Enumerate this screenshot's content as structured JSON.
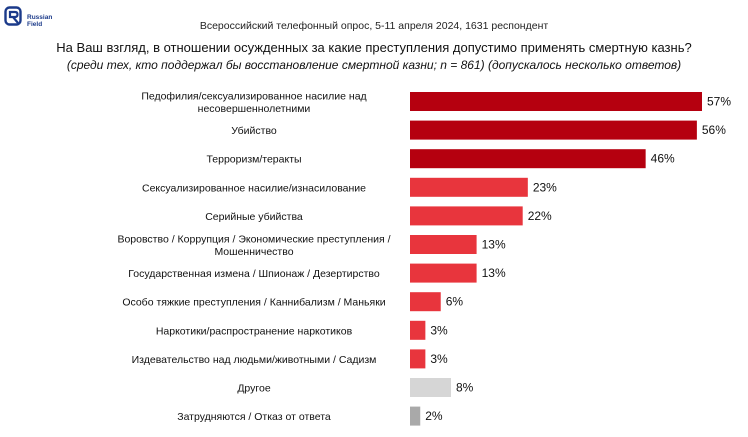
{
  "header": {
    "logo_text_1": "Russian",
    "logo_text_2": "Field",
    "survey_line": "Всероссийский телефонный опрос, 5-11 апреля 2024, 1631 респондент",
    "question": "На Ваш взгляд, в отношении осужденных за какие преступления допустимо применять смертную казнь?",
    "subtitle": "(среди тех, кто поддержал бы восстановление смертной казни; n = 861) (допускалось несколько ответов)"
  },
  "colors": {
    "dark_red": "#b5000f",
    "red": "#e8353d",
    "light_gray": "#d6d6d6",
    "mid_gray": "#a9a9a9",
    "logo_blue": "#1b3a8a"
  },
  "chart_data": {
    "type": "bar",
    "orientation": "horizontal",
    "unit": "%",
    "categories": [
      [
        "Педофилия/сексуализированное насилие над",
        "несовершеннолетними"
      ],
      [
        "Убийство"
      ],
      [
        "Терроризм/теракты"
      ],
      [
        "Сексуализированное насилие/изнасилование"
      ],
      [
        "Серийные убийства"
      ],
      [
        "Воровство / Коррупция / Экономические преступления /",
        "Мошенничество"
      ],
      [
        "Государственная измена / Шпионаж / Дезертирство"
      ],
      [
        "Особо тяжкие преступления / Каннибализм / Маньяки"
      ],
      [
        "Наркотики/распространение наркотиков"
      ],
      [
        "Издевательство над людьми/животными / Садизм"
      ],
      [
        "Другое"
      ],
      [
        "Затрудняются / Отказ от ответа"
      ]
    ],
    "values": [
      57,
      56,
      46,
      23,
      22,
      13,
      13,
      6,
      3,
      3,
      8,
      2
    ],
    "value_labels": [
      "57%",
      "56%",
      "46%",
      "23%",
      "22%",
      "13%",
      "13%",
      "6%",
      "3%",
      "3%",
      "8%",
      "2%"
    ],
    "bar_colors": [
      "dark_red",
      "dark_red",
      "dark_red",
      "red",
      "red",
      "red",
      "red",
      "red",
      "red",
      "red",
      "light_gray",
      "mid_gray"
    ],
    "xlim": [
      0,
      57
    ],
    "grid": false,
    "legend": "none"
  }
}
